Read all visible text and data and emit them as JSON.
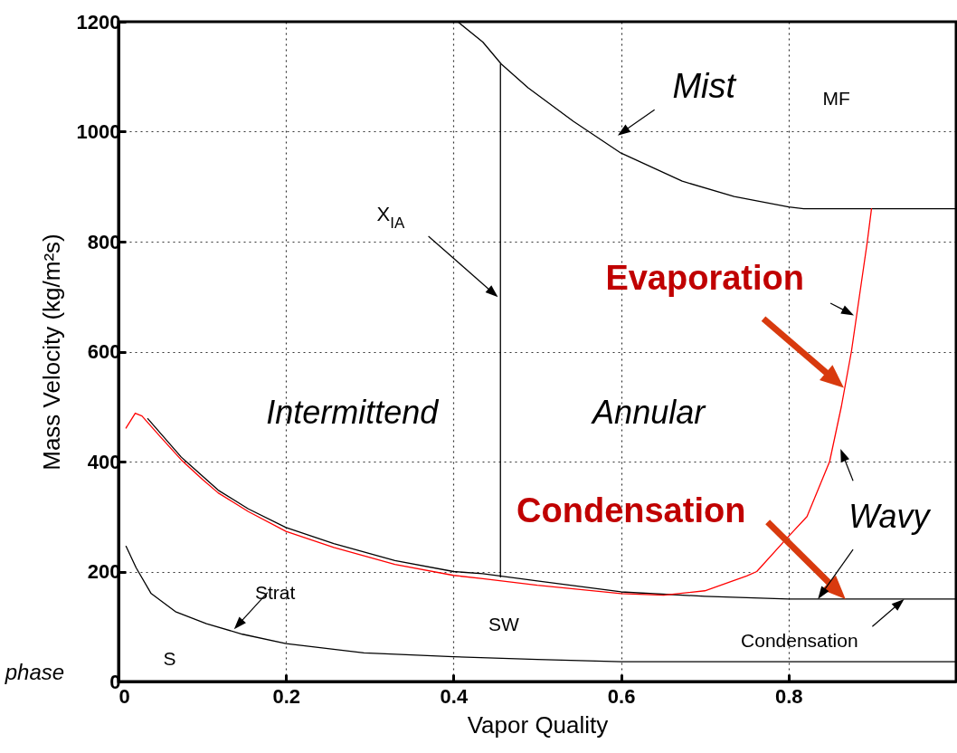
{
  "chart_data": {
    "type": "line",
    "xlabel": "Vapor Quality",
    "ylabel": "Mass Velocity (kg/m²s)",
    "xlim": [
      0,
      1
    ],
    "ylim": [
      0,
      1200
    ],
    "xticks": [
      0,
      0.2,
      0.4,
      0.6,
      0.8
    ],
    "yticks": [
      0,
      200,
      400,
      600,
      800,
      1000,
      1200
    ],
    "grid": true,
    "line_style": "solid",
    "marker": "none",
    "series": [
      {
        "color": "#000000",
        "x": [
          0.035,
          0.075,
          0.119,
          0.155,
          0.2,
          0.257,
          0.33,
          0.4,
          0.435,
          0.5,
          0.6,
          0.7,
          0.8,
          1.0
        ],
        "values": [
          478,
          408,
          348,
          314,
          280,
          251,
          220,
          200,
          196,
          183,
          163,
          155,
          150,
          150
        ]
      },
      {
        "color": "#000000",
        "x": [
          0.405,
          0.435,
          0.457,
          0.489,
          0.543,
          0.6,
          0.673,
          0.735,
          0.8,
          0.818,
          1.0
        ],
        "values": [
          1200,
          1163,
          1123,
          1080,
          1019,
          961,
          910,
          882,
          863,
          860,
          860
        ]
      },
      {
        "color": "#000000",
        "x": [
          0.456,
          0.456
        ],
        "values": [
          190,
          1123
        ]
      },
      {
        "color": "#000000",
        "x": [
          0.009,
          0.021,
          0.039,
          0.068,
          0.105,
          0.148,
          0.2,
          0.293,
          0.4,
          0.5,
          0.6,
          1.0
        ],
        "values": [
          246,
          207,
          160,
          127,
          105,
          86,
          69,
          52,
          45,
          40,
          36,
          36
        ]
      },
      {
        "color": "#ff0000",
        "x": [
          0.009,
          0.02,
          0.028,
          0.05,
          0.075,
          0.1,
          0.119,
          0.155,
          0.2,
          0.257,
          0.33,
          0.4,
          0.435,
          0.5,
          0.6,
          0.651,
          0.7,
          0.75,
          0.762,
          0.8,
          0.822,
          0.849,
          0.863,
          0.875,
          0.894,
          0.899
        ],
        "values": [
          461,
          488,
          483,
          445,
          403,
          368,
          343,
          309,
          273,
          244,
          213,
          193,
          187,
          175,
          160,
          157,
          165,
          192,
          200,
          264,
          300,
          400,
          500,
          600,
          800,
          860
        ]
      }
    ],
    "annotations": [
      "Mist",
      "MF",
      "X$_{IA}$",
      "Evaporation",
      "Intermittend",
      "Annular",
      "Condensation",
      "Wavy",
      "Condensation",
      "Strat",
      "SW",
      "S",
      "phase"
    ]
  }
}
